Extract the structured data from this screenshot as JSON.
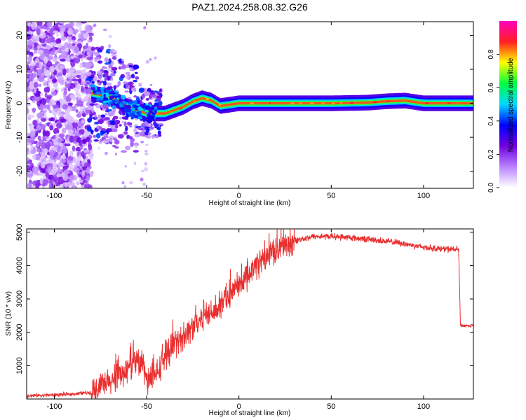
{
  "title": "PAZ1.2024.258.08.32.G26",
  "chart_data": [
    {
      "type": "heatmap",
      "xlabel": "Height of straight line (km)",
      "ylabel": "Frequency (Hz)",
      "xlim": [
        -115,
        127
      ],
      "ylim": [
        -25,
        24
      ],
      "xticks": [
        -100,
        -50,
        0,
        50,
        100
      ],
      "yticks": [
        -20,
        -10,
        0,
        10,
        20
      ],
      "ridge_frequency": {
        "x": [
          -80,
          -70,
          -60,
          -50,
          -45,
          -40,
          -35,
          -30,
          -25,
          -20,
          -15,
          -10,
          0,
          10,
          30,
          50,
          70,
          80,
          90,
          100,
          127
        ],
        "y": [
          3,
          2,
          -1,
          -3,
          -3,
          -3,
          -2,
          -1,
          0.5,
          1.5,
          0.8,
          -0.8,
          0,
          0,
          0,
          0,
          0.2,
          0.6,
          0.8,
          0,
          0
        ]
      },
      "colorbar": {
        "label": "Normalized spectral amplitude",
        "range": [
          0,
          1
        ],
        "ticks": [
          "0.0",
          "0.2",
          "0.4",
          "0.6",
          "0.8"
        ],
        "tick_values": [
          0,
          0.2,
          0.4,
          0.6,
          0.8
        ],
        "colors": [
          "#ffffff",
          "#b983ff",
          "#7000e0",
          "#0000ff",
          "#00d8ff",
          "#00ff40",
          "#ffff00",
          "#ff2020",
          "#ff00c0"
        ]
      }
    },
    {
      "type": "line",
      "xlabel": "Height of straight line (km)",
      "ylabel": "SNR (10 * v/v)",
      "xlim": [
        -115,
        127
      ],
      "ylim": [
        0,
        5100
      ],
      "xticks": [
        -100,
        -50,
        0,
        50,
        100
      ],
      "yticks": [
        1000,
        2000,
        3000,
        4000,
        5000
      ],
      "color": "#e83030",
      "series": [
        {
          "x": [
            -115,
            -100,
            -90,
            -80,
            -70,
            -60,
            -55,
            -52,
            -50,
            -45,
            -40,
            -30,
            -20,
            -10,
            0,
            10,
            20,
            30,
            40,
            50,
            60,
            70,
            80,
            90,
            100,
            110,
            119,
            120,
            127
          ],
          "y": [
            100,
            120,
            150,
            200,
            500,
            900,
            1100,
            1100,
            500,
            700,
            1300,
            1900,
            2450,
            2800,
            3350,
            4050,
            4450,
            4750,
            4870,
            4880,
            4840,
            4790,
            4730,
            4650,
            4550,
            4500,
            4480,
            2200,
            2200
          ]
        }
      ]
    }
  ]
}
